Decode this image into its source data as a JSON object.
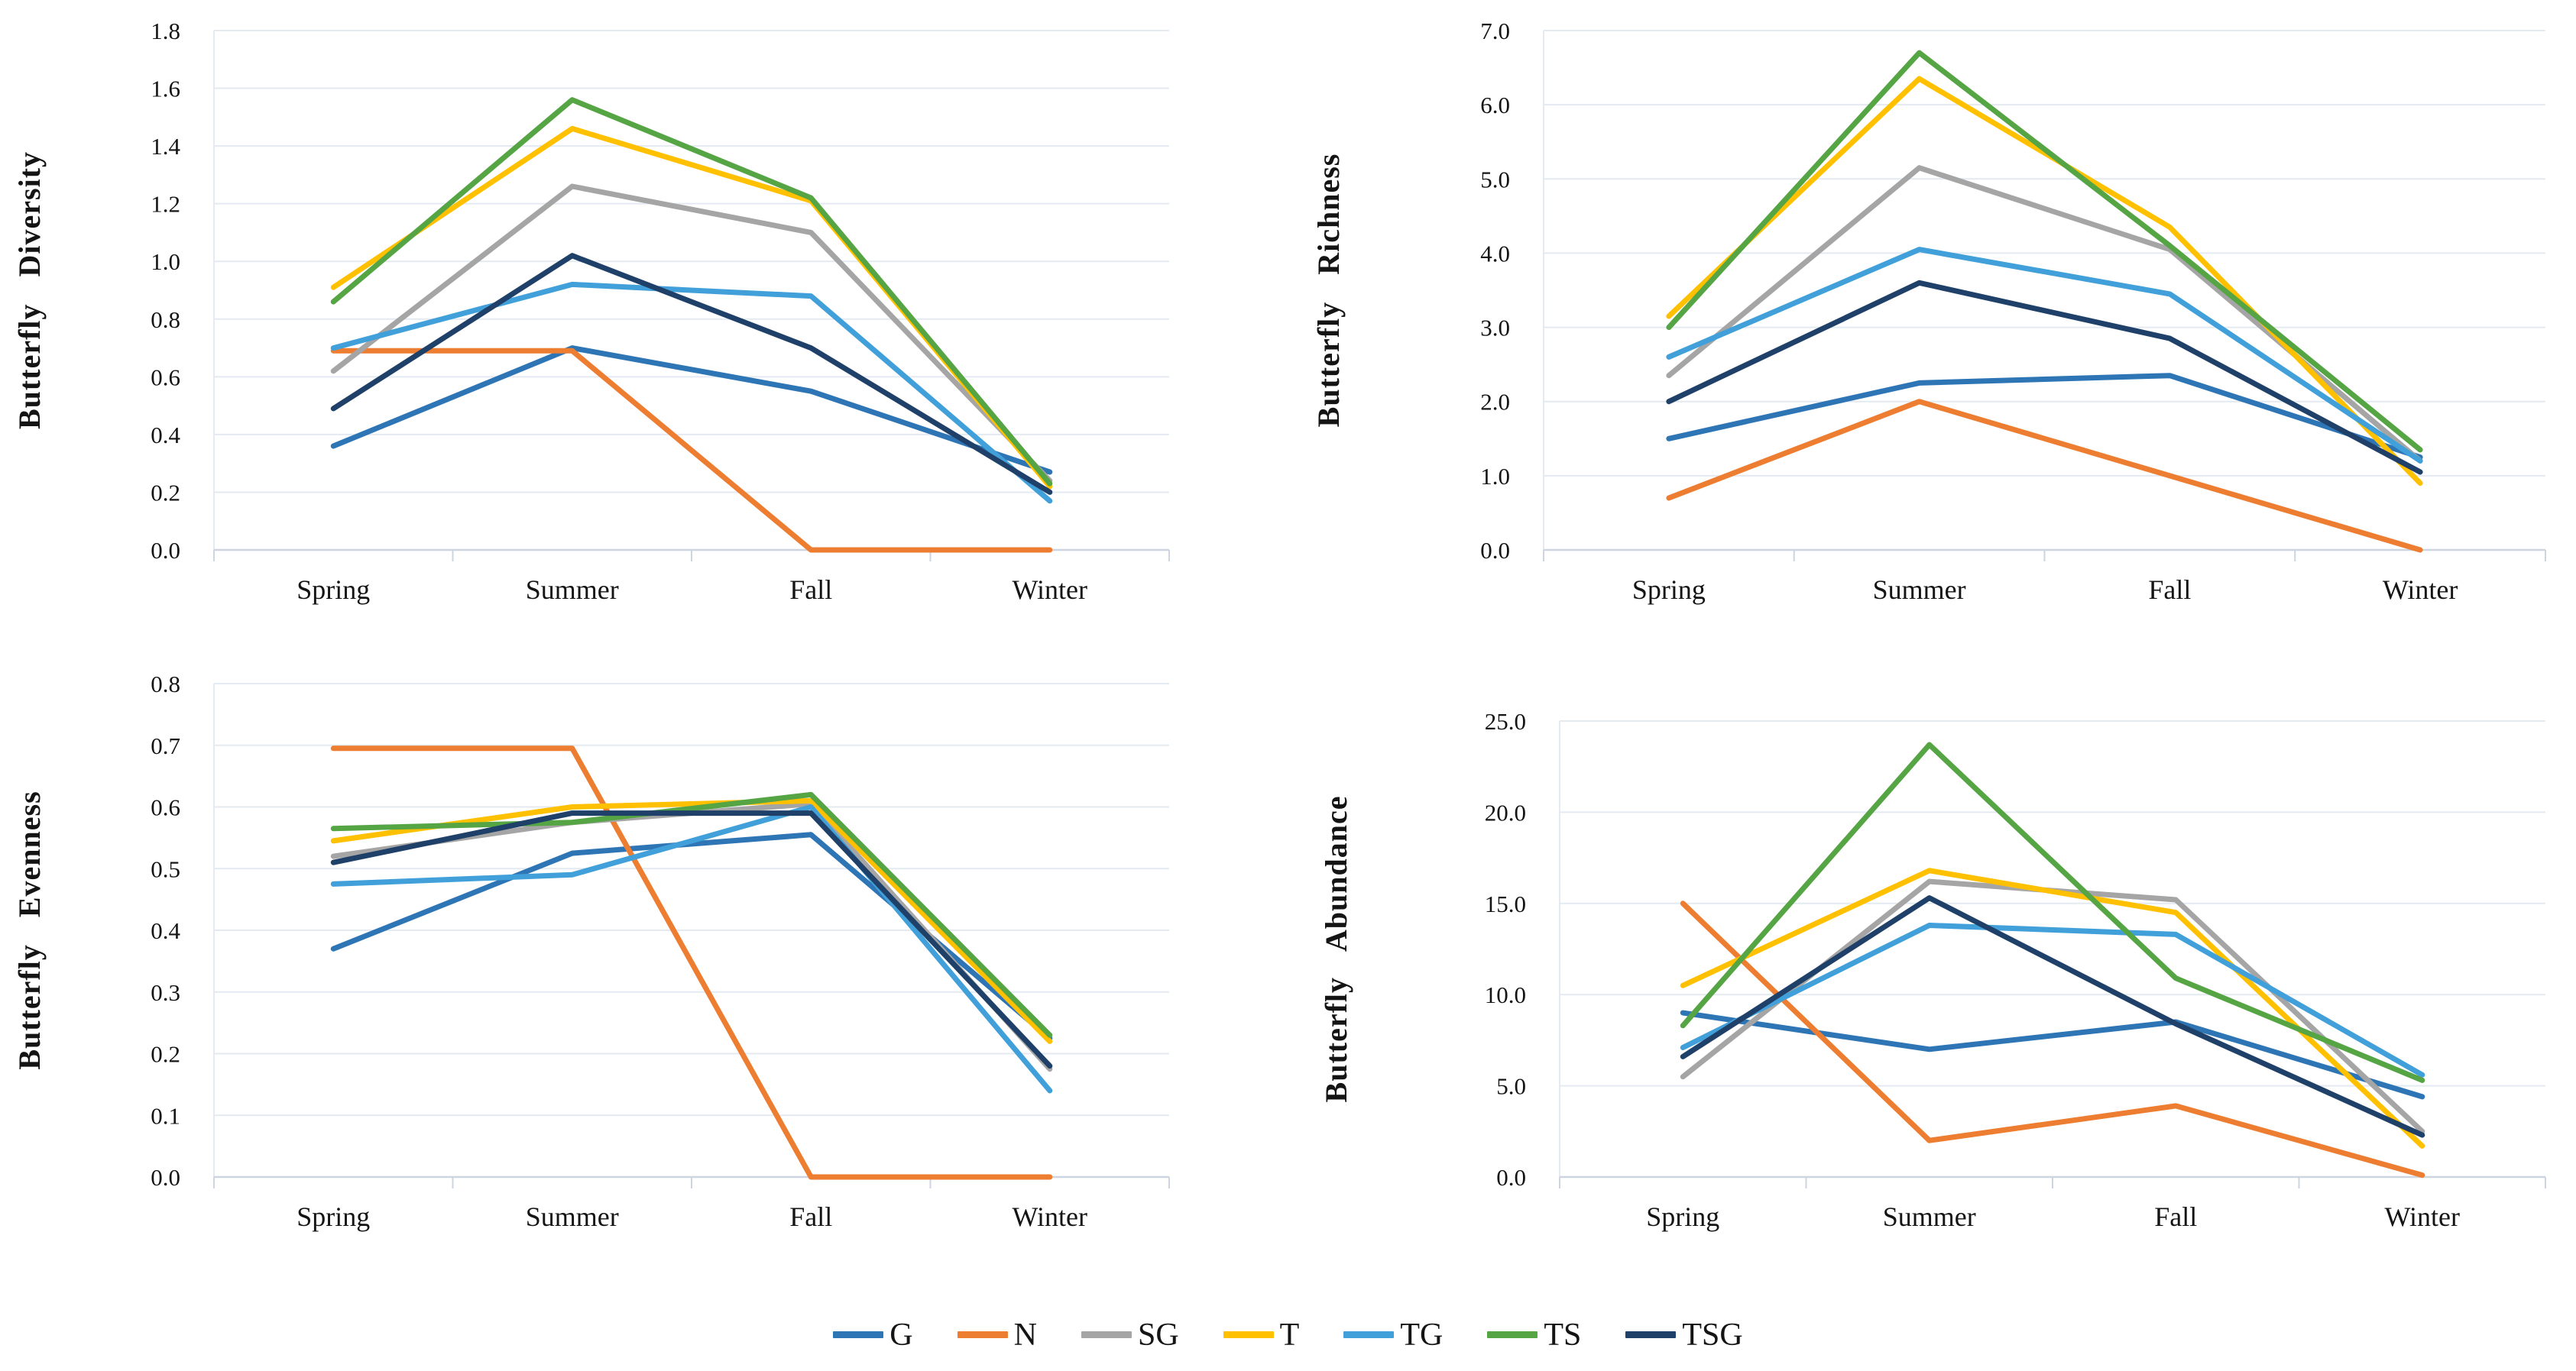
{
  "figure": {
    "categories": [
      "Spring",
      "Summer",
      "Fall",
      "Winter"
    ],
    "legend": [
      {
        "label": "G",
        "color": "#2E75B6"
      },
      {
        "label": "N",
        "color": "#ED7D31"
      },
      {
        "label": "SG",
        "color": "#A5A5A5"
      },
      {
        "label": "T",
        "color": "#FFC000"
      },
      {
        "label": "TG",
        "color": "#41A0D9"
      },
      {
        "label": "TS",
        "color": "#56A544"
      },
      {
        "label": "TSG",
        "color": "#1F4068"
      }
    ],
    "grid_color": "#E4EAF1",
    "axis_color": "#CDD5E0",
    "text_color": "#141414"
  },
  "chart_data": [
    {
      "type": "line",
      "title": "",
      "ylabel": "Butterfly Diversity",
      "xlabel": "",
      "categories": [
        "Spring",
        "Summer",
        "Fall",
        "Winter"
      ],
      "ylim": [
        0,
        1.8
      ],
      "ytick_step": 0.2,
      "ytick_labels": [
        "0.0",
        "0.2",
        "0.4",
        "0.6",
        "0.8",
        "1.0",
        "1.2",
        "1.4",
        "1.6",
        "1.8"
      ],
      "grid": true,
      "legend_position": "bottom-shared",
      "series": [
        {
          "name": "G",
          "values": [
            0.36,
            0.7,
            0.55,
            0.27
          ]
        },
        {
          "name": "N",
          "values": [
            0.69,
            0.69,
            0.0,
            0.0
          ]
        },
        {
          "name": "SG",
          "values": [
            0.62,
            1.26,
            1.1,
            0.24
          ]
        },
        {
          "name": "T",
          "values": [
            0.91,
            1.46,
            1.21,
            0.22
          ]
        },
        {
          "name": "TG",
          "values": [
            0.7,
            0.92,
            0.88,
            0.17
          ]
        },
        {
          "name": "TS",
          "values": [
            0.86,
            1.56,
            1.22,
            0.23
          ]
        },
        {
          "name": "TSG",
          "values": [
            0.49,
            1.02,
            0.7,
            0.2
          ]
        }
      ]
    },
    {
      "type": "line",
      "title": "",
      "ylabel": "Butterfly Richness",
      "xlabel": "",
      "categories": [
        "Spring",
        "Summer",
        "Fall",
        "Winter"
      ],
      "ylim": [
        0,
        7
      ],
      "ytick_step": 1,
      "ytick_labels": [
        "0.0",
        "1.0",
        "2.0",
        "3.0",
        "4.0",
        "5.0",
        "6.0",
        "7.0"
      ],
      "grid": true,
      "legend_position": "bottom-shared",
      "series": [
        {
          "name": "G",
          "values": [
            1.5,
            2.25,
            2.35,
            1.25
          ]
        },
        {
          "name": "N",
          "values": [
            0.7,
            2.0,
            1.0,
            0.0
          ]
        },
        {
          "name": "SG",
          "values": [
            2.35,
            5.15,
            4.05,
            1.2
          ]
        },
        {
          "name": "T",
          "values": [
            3.15,
            6.35,
            4.35,
            0.9
          ]
        },
        {
          "name": "TG",
          "values": [
            2.6,
            4.05,
            3.45,
            1.2
          ]
        },
        {
          "name": "TS",
          "values": [
            3.0,
            6.7,
            4.1,
            1.35
          ]
        },
        {
          "name": "TSG",
          "values": [
            2.0,
            3.6,
            2.85,
            1.05
          ]
        }
      ]
    },
    {
      "type": "line",
      "title": "",
      "ylabel": "Butterfly Evenness",
      "xlabel": "",
      "categories": [
        "Spring",
        "Summer",
        "Fall",
        "Winter"
      ],
      "ylim": [
        0,
        0.8
      ],
      "ytick_step": 0.1,
      "ytick_labels": [
        "0.0",
        "0.1",
        "0.2",
        "0.3",
        "0.4",
        "0.5",
        "0.6",
        "0.7",
        "0.8"
      ],
      "grid": true,
      "legend_position": "bottom-shared",
      "series": [
        {
          "name": "G",
          "values": [
            0.37,
            0.525,
            0.555,
            0.225
          ]
        },
        {
          "name": "N",
          "values": [
            0.695,
            0.695,
            0.0,
            0.0
          ]
        },
        {
          "name": "SG",
          "values": [
            0.52,
            0.575,
            0.605,
            0.175
          ]
        },
        {
          "name": "T",
          "values": [
            0.545,
            0.6,
            0.61,
            0.22
          ]
        },
        {
          "name": "TG",
          "values": [
            0.475,
            0.49,
            0.6,
            0.14
          ]
        },
        {
          "name": "TS",
          "values": [
            0.565,
            0.575,
            0.62,
            0.23
          ]
        },
        {
          "name": "TSG",
          "values": [
            0.51,
            0.59,
            0.59,
            0.18
          ]
        }
      ]
    },
    {
      "type": "line",
      "title": "",
      "ylabel": "Butterfly Abundance",
      "xlabel": "",
      "categories": [
        "Spring",
        "Summer",
        "Fall",
        "Winter"
      ],
      "ylim": [
        0,
        25
      ],
      "ytick_step": 5,
      "ytick_labels": [
        "0.0",
        "5.0",
        "10.0",
        "15.0",
        "20.0",
        "25.0"
      ],
      "grid": true,
      "legend_position": "bottom-shared",
      "series": [
        {
          "name": "G",
          "values": [
            9.0,
            7.0,
            8.5,
            4.4
          ]
        },
        {
          "name": "N",
          "values": [
            15.0,
            2.0,
            3.9,
            0.1
          ]
        },
        {
          "name": "SG",
          "values": [
            5.5,
            16.2,
            15.2,
            2.5
          ]
        },
        {
          "name": "T",
          "values": [
            10.5,
            16.8,
            14.5,
            1.7
          ]
        },
        {
          "name": "TG",
          "values": [
            7.1,
            13.8,
            13.3,
            5.6
          ]
        },
        {
          "name": "TS",
          "values": [
            8.3,
            23.7,
            10.9,
            5.3
          ]
        },
        {
          "name": "TSG",
          "values": [
            6.6,
            15.3,
            8.4,
            2.3
          ]
        }
      ]
    }
  ]
}
